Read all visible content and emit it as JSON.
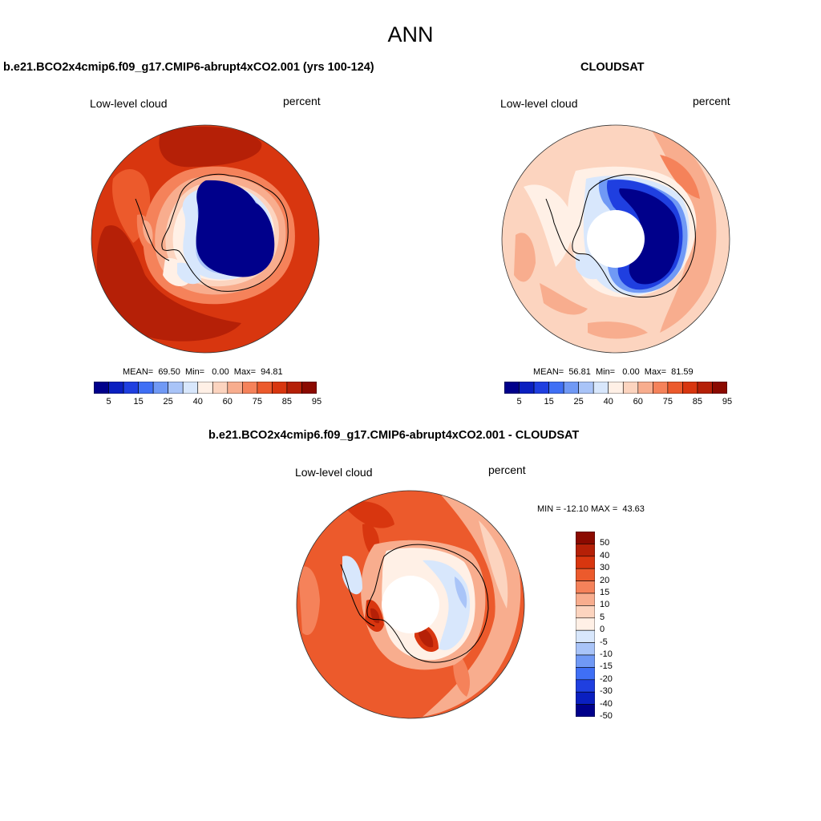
{
  "title": "ANN",
  "panels": [
    {
      "title": "b.e21.BCO2x4cmip6.f09_g17.CMIP6-abrupt4xCO2.001 (yrs 100-124)",
      "variable": "Low-level cloud",
      "units": "percent",
      "stats": "MEAN=  69.50  Min=   0.00  Max=  94.81",
      "colorbar_labels": [
        "5",
        "15",
        "25",
        "40",
        "60",
        "75",
        "85",
        "95"
      ]
    },
    {
      "title": "CLOUDSAT",
      "variable": "Low-level cloud",
      "units": "percent",
      "stats": "MEAN=  56.81  Min=   0.00  Max=  81.59",
      "colorbar_labels": [
        "5",
        "15",
        "25",
        "40",
        "60",
        "75",
        "85",
        "95"
      ]
    },
    {
      "title": "b.e21.BCO2x4cmip6.f09_g17.CMIP6-abrupt4xCO2.001 - CLOUDSAT",
      "variable": "Low-level cloud",
      "units": "percent",
      "stats": "MIN = -12.10 MAX =  43.63",
      "colorbar_labels": [
        "50",
        "40",
        "30",
        "20",
        "15",
        "10",
        "5",
        "0",
        "-5",
        "-10",
        "-15",
        "-20",
        "-30",
        "-40",
        "-50"
      ]
    }
  ],
  "colors": {
    "abs_scale": [
      "#00008b",
      "#0a1fc0",
      "#1f3fe0",
      "#3f6ff5",
      "#7099f5",
      "#a9c4f8",
      "#d8e7fc",
      "#fff0e6",
      "#fcd4bf",
      "#f8ad8e",
      "#f5825a",
      "#ec5a2c",
      "#d8360f",
      "#b52007",
      "#8b0a00"
    ],
    "diff_scale": [
      "#8b0a00",
      "#b52007",
      "#d8360f",
      "#ec5a2c",
      "#f5825a",
      "#f8ad8e",
      "#fcd4bf",
      "#fff0e6",
      "#d8e7fc",
      "#a9c4f8",
      "#7099f5",
      "#3f6ff5",
      "#1f3fe0",
      "#0a1fc0",
      "#00008b"
    ]
  }
}
